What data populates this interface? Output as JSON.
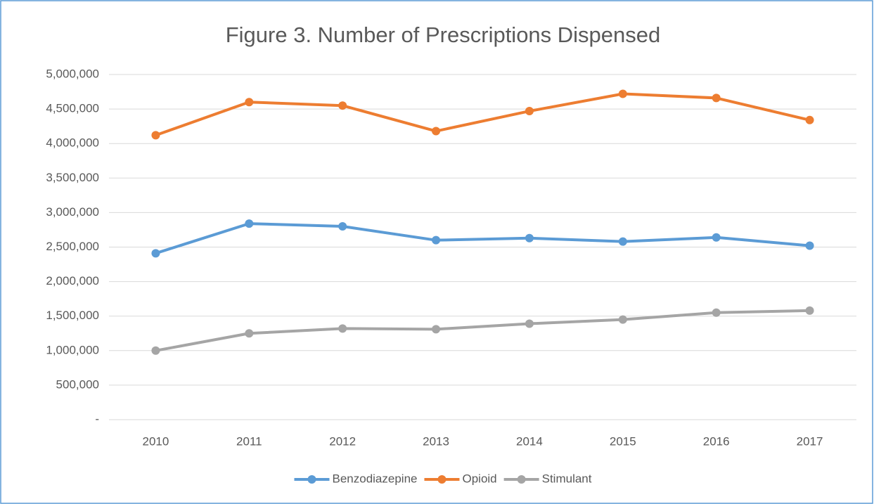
{
  "chart_data": {
    "type": "line",
    "title": "Figure 3. Number of Prescriptions Dispensed",
    "categories": [
      "2010",
      "2011",
      "2012",
      "2013",
      "2014",
      "2015",
      "2016",
      "2017"
    ],
    "series": [
      {
        "name": "Benzodiazepine",
        "color": "#5b9bd5",
        "values": [
          2410000,
          2840000,
          2800000,
          2600000,
          2630000,
          2580000,
          2640000,
          2520000
        ]
      },
      {
        "name": "Opioid",
        "color": "#ed7d31",
        "values": [
          4120000,
          4600000,
          4550000,
          4180000,
          4470000,
          4720000,
          4660000,
          4340000
        ]
      },
      {
        "name": "Stimulant",
        "color": "#a5a5a5",
        "values": [
          1000000,
          1250000,
          1320000,
          1310000,
          1390000,
          1450000,
          1550000,
          1580000
        ]
      }
    ],
    "ylim": [
      0,
      5000000
    ],
    "yticks": [
      {
        "value": 0,
        "label": "-"
      },
      {
        "value": 500000,
        "label": "500,000"
      },
      {
        "value": 1000000,
        "label": "1,000,000"
      },
      {
        "value": 1500000,
        "label": "1,500,000"
      },
      {
        "value": 2000000,
        "label": "2,000,000"
      },
      {
        "value": 2500000,
        "label": "2,500,000"
      },
      {
        "value": 3000000,
        "label": "3,000,000"
      },
      {
        "value": 3500000,
        "label": "3,500,000"
      },
      {
        "value": 4000000,
        "label": "4,000,000"
      },
      {
        "value": 4500000,
        "label": "4,500,000"
      },
      {
        "value": 5000000,
        "label": "5,000,000"
      }
    ],
    "grid": true,
    "legend": "bottom"
  }
}
